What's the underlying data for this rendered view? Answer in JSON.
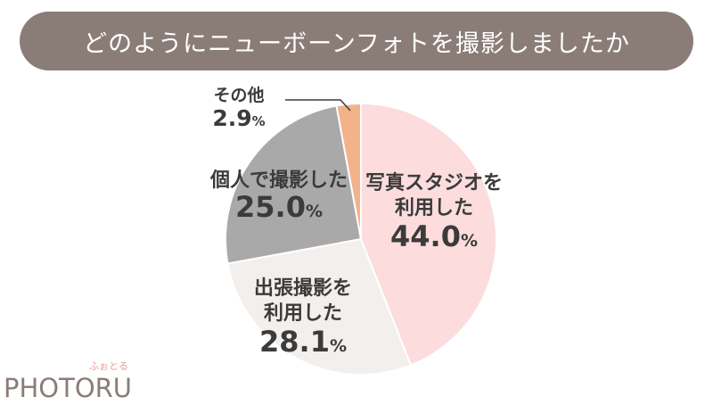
{
  "colors": {
    "title_bg": "#8a7d78",
    "studio": "#fcdcdc",
    "outcall": "#f3efec",
    "personal": "#a9a9a9",
    "other": "#f2b38b",
    "label": "#3b3b3b",
    "logo": "#8a7d78",
    "logo_kana": "#e89a98"
  },
  "chart_data": {
    "type": "pie",
    "title": "どのようにニューボーンフォトを撮影しましたか",
    "slices": [
      {
        "label_lines": [
          "写真スタジオを",
          "利用した"
        ],
        "value": 44.0,
        "value_text": "44.0",
        "unit": "%",
        "color": "#fcdcdc"
      },
      {
        "label_lines": [
          "出張撮影を",
          "利用した"
        ],
        "value": 28.1,
        "value_text": "28.1",
        "unit": "%",
        "color": "#f3efec"
      },
      {
        "label_lines": [
          "個人で撮影した"
        ],
        "value": 25.0,
        "value_text": "25.0",
        "unit": "%",
        "color": "#a9a9a9"
      },
      {
        "label_lines": [
          "その他"
        ],
        "value": 2.9,
        "value_text": "2.9",
        "unit": "%",
        "color": "#f2b38b"
      }
    ],
    "start": "top",
    "direction": "clockwise"
  },
  "logo": {
    "text": "PHOTORU",
    "kana": "ふぉとる"
  }
}
